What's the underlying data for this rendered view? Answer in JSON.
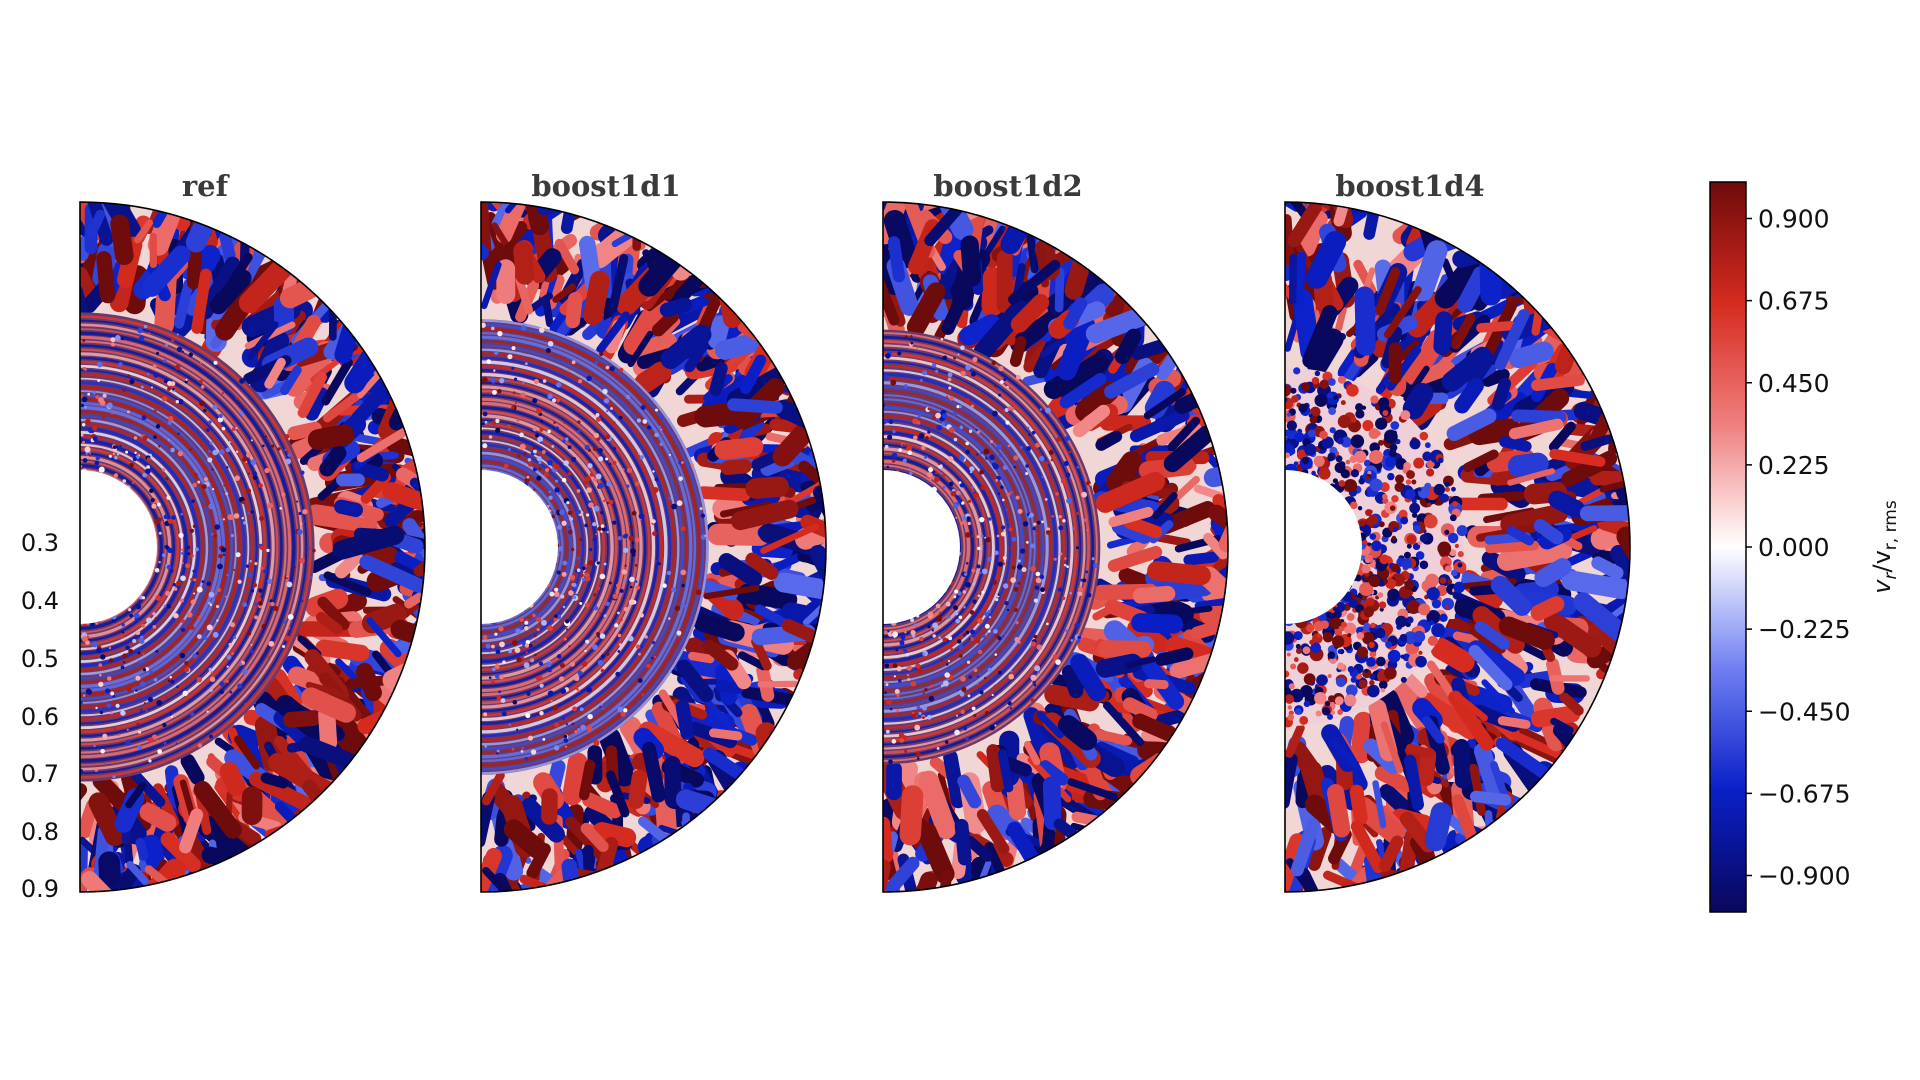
{
  "chart_data": {
    "type": "heatmap",
    "description_kind": "meridional slices (half-disc, 0 to 180 deg colatitude) of normalized radial velocity",
    "panels": [
      {
        "title": "ref",
        "convective_boundary_r": 0.68
      },
      {
        "title": "boost1d1",
        "convective_boundary_r": 0.66
      },
      {
        "title": "boost1d2",
        "convective_boundary_r": 0.63
      },
      {
        "title": "boost1d4",
        "convective_boundary_r": 0.52
      }
    ],
    "radius": {
      "inner": 0.2,
      "outer": 1.0
    },
    "radial_ticks": [
      "0.3",
      "0.4",
      "0.5",
      "0.6",
      "0.7",
      "0.8",
      "0.9"
    ],
    "colorbar": {
      "label": "v_r/v_r, rms",
      "label_main": "v",
      "label_sub1": "r",
      "label_mid": "/v",
      "label_sub2": "r, rms",
      "range": [
        -1.0,
        1.0
      ],
      "ticks": [
        "0.900",
        "0.675",
        "0.450",
        "0.225",
        "0.000",
        "−0.225",
        "−0.450",
        "−0.675",
        "−0.900"
      ],
      "colormap": [
        "#08085c",
        "#0a1fc8",
        "#6f7ff2",
        "#ffffff",
        "#f08080",
        "#d62b1f",
        "#6e0b0b"
      ]
    }
  }
}
